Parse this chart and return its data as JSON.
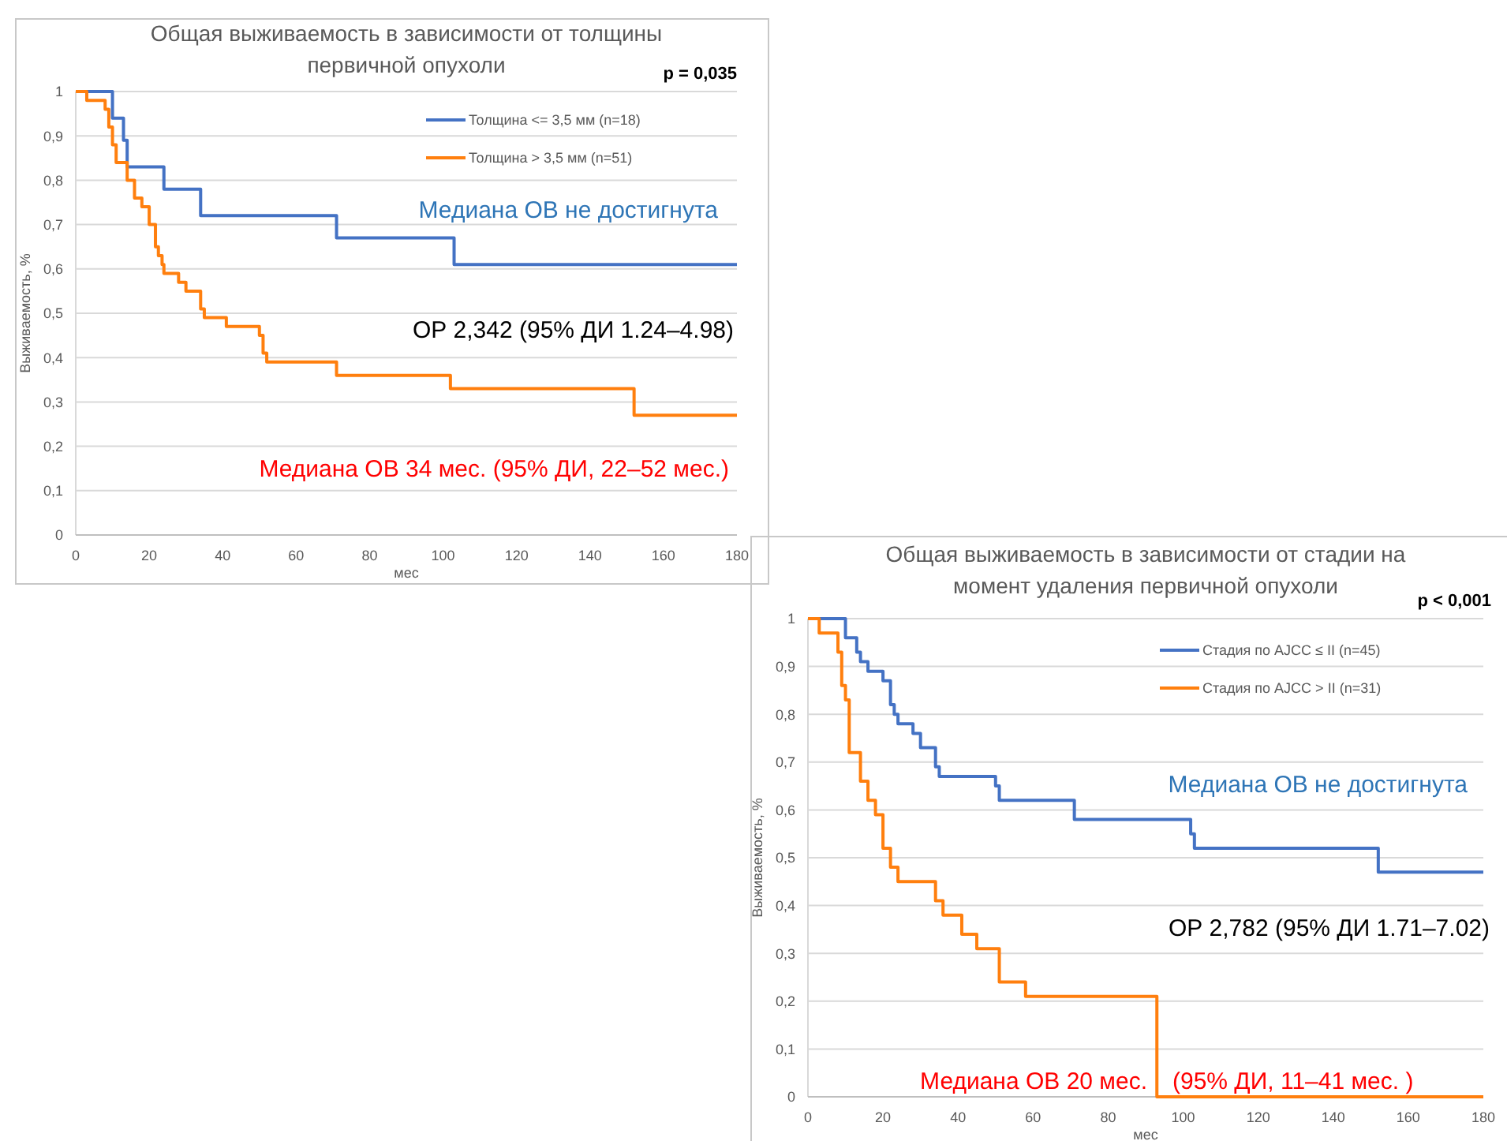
{
  "chart_data": [
    {
      "type": "step",
      "title": "Общая выживаемость в зависимости от толщины\nпервичной опухоли",
      "xlabel": "мес",
      "ylabel": "Выживаемость, %",
      "xlim": [
        0,
        180
      ],
      "xticks": [
        {
          "value": 0,
          "label": "0"
        },
        20,
        40,
        60,
        80,
        100,
        120,
        140,
        160,
        180
      ],
      "ylim": [
        0,
        1
      ],
      "yticks": [
        {
          "value": 0,
          "label": "0"
        },
        {
          "value": 0.1,
          "label": "0,1"
        },
        {
          "value": 0.2,
          "label": "0,2"
        },
        {
          "value": 0.3,
          "label": "0,3"
        },
        {
          "value": 0.4,
          "label": "0,4"
        },
        {
          "value": 0.5,
          "label": "0,5"
        },
        {
          "value": 0.6,
          "label": "0,6"
        },
        {
          "value": 0.7,
          "label": "0,7"
        },
        {
          "value": 0.8,
          "label": "0,8"
        },
        {
          "value": 0.9,
          "label": "0,9"
        },
        1
      ],
      "grid": "y",
      "legend": "top right",
      "marker": "none",
      "line_style": "solid",
      "series": [
        {
          "name": "Толщина <= 3,5 мм (n=18)",
          "color": "#4472c4",
          "x": [
            0,
            10,
            13,
            14,
            24,
            34,
            71,
            103,
            180
          ],
          "values": [
            1,
            0.94,
            0.89,
            0.83,
            0.78,
            0.72,
            0.67,
            0.61,
            0.61
          ]
        },
        {
          "name": "Толщина > 3,5 мм (n=51)",
          "color": "#ff7f0e",
          "x": [
            0,
            3,
            8,
            9,
            10,
            11,
            14,
            16,
            18,
            20,
            21.7,
            22.5,
            23.5,
            24,
            28,
            30,
            34,
            35,
            41,
            50,
            51,
            52,
            71,
            102,
            152,
            180
          ],
          "values": [
            1,
            0.98,
            0.96,
            0.92,
            0.88,
            0.84,
            0.8,
            0.76,
            0.74,
            0.7,
            0.65,
            0.63,
            0.61,
            0.59,
            0.57,
            0.55,
            0.51,
            0.49,
            0.47,
            0.45,
            0.41,
            0.39,
            0.36,
            0.33,
            0.27,
            0.27
          ]
        }
      ],
      "annotations": [
        "p  =  0,035",
        "Медиана ОВ не достигнута",
        "ОР 2,342 (95% ДИ 1.24–4.98)",
        "Медиана ОВ 34 мес. (95% ДИ, 22–52 мес.)"
      ]
    },
    {
      "type": "step",
      "title": "Общая выживаемость в зависимости от стадии на\nмомент удаления первичной опухоли",
      "xlabel": "мес",
      "ylabel": "Выживаемость, %",
      "xlim": [
        0,
        180
      ],
      "xticks": [
        {
          "value": 0,
          "label": "0"
        },
        20,
        40,
        60,
        80,
        100,
        120,
        140,
        160,
        180
      ],
      "ylim": [
        0,
        1
      ],
      "yticks": [
        {
          "value": 0,
          "label": "0"
        },
        {
          "value": 0.1,
          "label": "0,1"
        },
        {
          "value": 0.2,
          "label": "0,2"
        },
        {
          "value": 0.3,
          "label": "0,3"
        },
        {
          "value": 0.4,
          "label": "0,4"
        },
        {
          "value": 0.5,
          "label": "0,5"
        },
        {
          "value": 0.6,
          "label": "0,6"
        },
        {
          "value": 0.7,
          "label": "0,7"
        },
        {
          "value": 0.8,
          "label": "0,8"
        },
        {
          "value": 0.9,
          "label": "0,9"
        },
        1
      ],
      "grid": "y",
      "legend": "top right",
      "marker": "none",
      "line_style": "solid",
      "series": [
        {
          "name": "Стадия по AJCC ≤ II (n=45)",
          "color": "#4472c4",
          "x": [
            0,
            10,
            13,
            14,
            16,
            20,
            22,
            23,
            24,
            28,
            30,
            34,
            35,
            50,
            51,
            71,
            102,
            103,
            152,
            180
          ],
          "values": [
            1,
            0.96,
            0.93,
            0.91,
            0.89,
            0.87,
            0.82,
            0.8,
            0.78,
            0.76,
            0.73,
            0.69,
            0.67,
            0.65,
            0.62,
            0.58,
            0.55,
            0.52,
            0.47,
            0.47
          ]
        },
        {
          "name": "Стадия по AJCC > II (n=31)",
          "color": "#ff7f0e",
          "x": [
            0,
            3,
            8,
            9,
            10,
            11,
            14,
            16,
            18,
            20,
            22,
            24,
            34,
            36,
            41,
            45,
            51,
            58,
            93,
            180
          ],
          "values": [
            1,
            0.97,
            0.93,
            0.86,
            0.83,
            0.72,
            0.66,
            0.62,
            0.59,
            0.52,
            0.48,
            0.45,
            0.41,
            0.38,
            0.34,
            0.31,
            0.24,
            0.21,
            0,
            0
          ]
        }
      ],
      "annotations": [
        "p  <  0,001",
        "Медиана ОВ не достигнута",
        "ОР 2,782 (95% ДИ 1.71–7.02)",
        "Медиана ОВ 20 мес.",
        "(95% ДИ, 11–41 мес. )"
      ]
    }
  ]
}
